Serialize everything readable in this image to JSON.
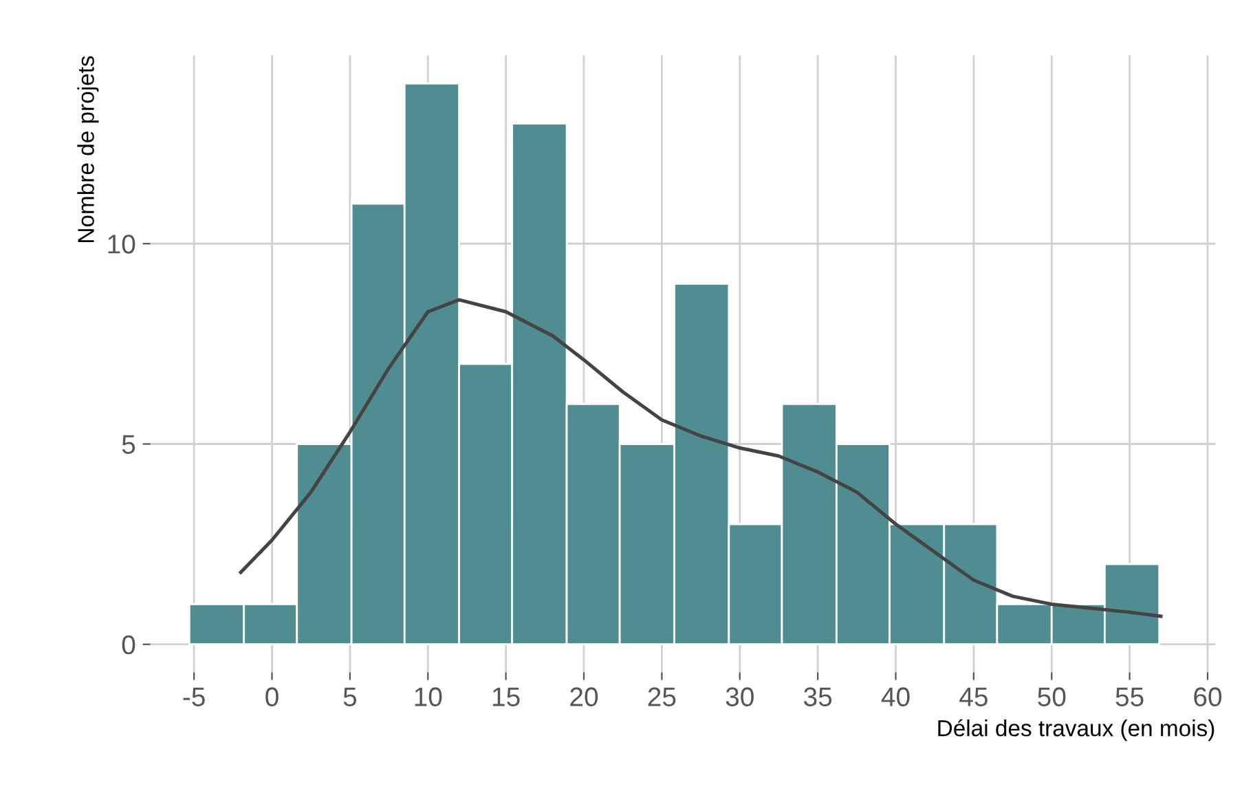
{
  "chart_data": {
    "type": "histogram",
    "xlabel": "Délai des travaux (en mois)",
    "ylabel": "Nombre de projets",
    "bins": [
      -5.3,
      -1.8,
      1.6,
      5.1,
      8.5,
      12.0,
      15.4,
      18.9,
      22.3,
      25.8,
      29.3,
      32.7,
      36.2,
      39.6,
      43.1,
      46.5,
      50.0,
      53.4,
      56.9
    ],
    "values": [
      1,
      1,
      5,
      11,
      14,
      7,
      13,
      6,
      5,
      9,
      3,
      6,
      5,
      3,
      3,
      1,
      1,
      2
    ],
    "color": "#4f8d91",
    "series": [
      {
        "type": "line",
        "color": "#444444",
        "x": [
          -2,
          0,
          2.5,
          5,
          7.5,
          10,
          12,
          15,
          18,
          20,
          22.5,
          25,
          27.5,
          30,
          32.5,
          35,
          37.5,
          40,
          42.5,
          45,
          47.5,
          50,
          52.5,
          55,
          57
        ],
        "values": [
          1.8,
          2.6,
          3.8,
          5.3,
          6.9,
          8.3,
          8.6,
          8.3,
          7.7,
          7.1,
          6.3,
          5.6,
          5.2,
          4.9,
          4.7,
          4.3,
          3.8,
          3.0,
          2.3,
          1.6,
          1.2,
          1.0,
          0.9,
          0.8,
          0.7
        ]
      }
    ],
    "xlim": [
      -7.8,
      60.5
    ],
    "xticks": [
      -5,
      0,
      5,
      10,
      15,
      20,
      25,
      30,
      35,
      40,
      45,
      50,
      55,
      60
    ],
    "ylim": [
      -0.7,
      14.7
    ],
    "yticks": [
      0,
      5,
      10
    ],
    "grid": true
  }
}
